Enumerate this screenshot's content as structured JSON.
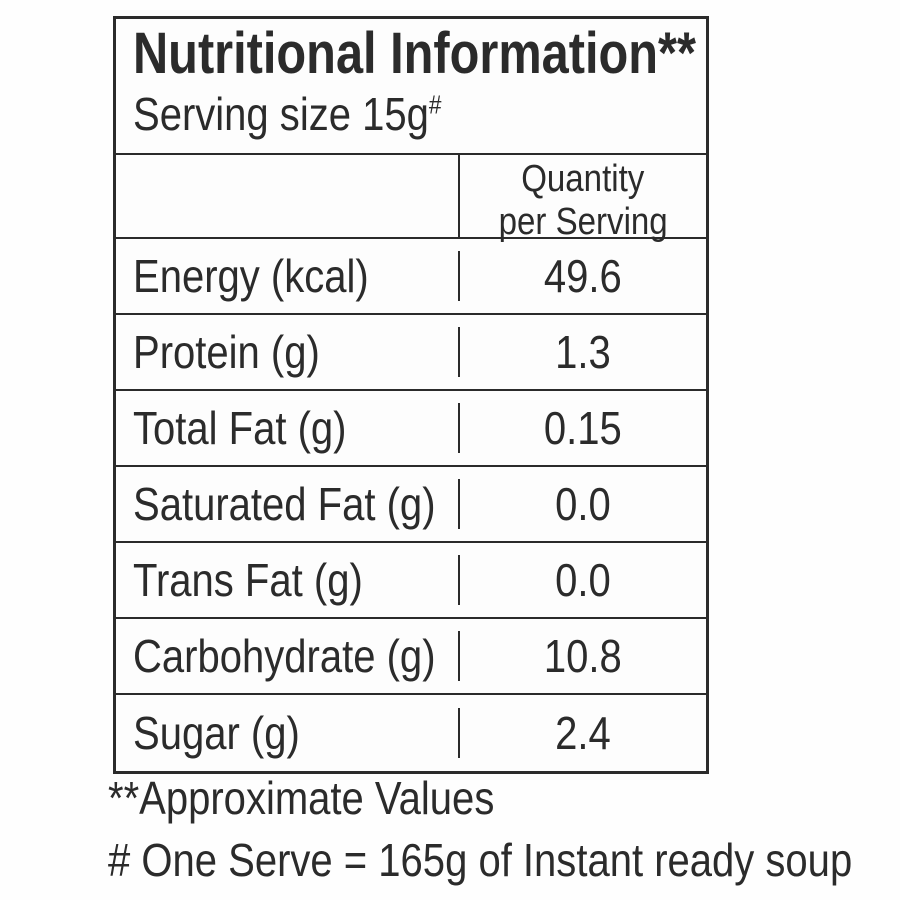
{
  "label": {
    "title": "Nutritional Information**",
    "serving_size_text": "Serving size 15g",
    "serving_size_superscript": "#",
    "table": {
      "header": {
        "quantity_line1": "Quantity",
        "quantity_line2": "per Serving"
      },
      "rows": [
        {
          "nutrient": "Energy (kcal)",
          "value": "49.6"
        },
        {
          "nutrient": "Protein (g)",
          "value": "1.3"
        },
        {
          "nutrient": "Total Fat (g)",
          "value": "0.15"
        },
        {
          "nutrient": "Saturated Fat (g)",
          "value": "0.0"
        },
        {
          "nutrient": "Trans Fat (g)",
          "value": "0.0"
        },
        {
          "nutrient": "Carbohydrate (g)",
          "value": "10.8"
        },
        {
          "nutrient": "Sugar (g)",
          "value": "2.4"
        }
      ]
    },
    "footnotes": {
      "approximate": "**Approximate Values",
      "one_serve": "# One Serve = 165g of Instant ready soup"
    },
    "colors": {
      "text": "#2b2b2b",
      "border": "#2b2b2b",
      "background": "#fefefe"
    }
  }
}
